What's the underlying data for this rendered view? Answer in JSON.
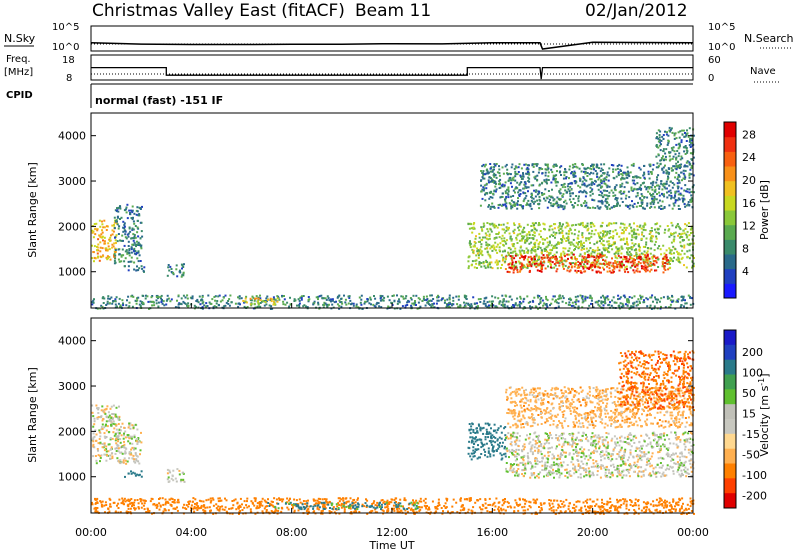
{
  "header": {
    "title": "Christmas Valley East (fitACF)",
    "beam": "Beam 11",
    "date": "02/Jan/2012"
  },
  "status": {
    "nsky_label": "N.Sky",
    "nsearch_label": "N.Search",
    "noise_ticks": [
      "10^5",
      "10^0"
    ],
    "freq_label": "Freq.",
    "freq_unit": "[MHz]",
    "freq_ticks": [
      "18",
      "8"
    ],
    "nave_label": "Nave",
    "nave_ticks": [
      "60",
      "0"
    ],
    "cpid_label": "CPID",
    "cpid_text": "normal (fast) -151 IF"
  },
  "x_ticks": [
    "00:00",
    "04:00",
    "08:00",
    "12:00",
    "16:00",
    "20:00",
    "00:00"
  ],
  "x_label": "Time UT",
  "power_colors": [
    "#1a1aff",
    "#2040c0",
    "#2a6a8a",
    "#3a8a6a",
    "#5aaa50",
    "#8ac83a",
    "#c8d820",
    "#f0c020",
    "#f89018",
    "#f86010",
    "#f03010",
    "#e00000"
  ],
  "velocity_colors": [
    "#e00000",
    "#ff4000",
    "#ff8000",
    "#ffb050",
    "#ffd890",
    "#c8c8c0",
    "#c0c0b8",
    "#60c030",
    "#40a050",
    "#2a7a8a",
    "#2040c0",
    "#1a1ac8"
  ],
  "chart_data": [
    {
      "type": "line",
      "panel": "noise",
      "x_range_hours": [
        0,
        24
      ],
      "series": [
        {
          "x": [
            0,
            2,
            4,
            6,
            8,
            10,
            12,
            14,
            16,
            17.9,
            18,
            20,
            22,
            24
          ],
          "y": [
            30,
            15,
            12,
            12,
            13,
            14,
            18,
            16,
            30,
            30,
            0.8,
            40,
            35,
            30
          ]
        }
      ]
    },
    {
      "type": "line",
      "panel": "frequency_nave",
      "y_range": [
        8,
        18
      ],
      "series": [
        {
          "x": [
            0,
            3,
            3,
            15,
            15,
            17.9,
            17.95,
            18,
            24
          ],
          "y": [
            14,
            14,
            10,
            10,
            14,
            14,
            8,
            14,
            14
          ]
        }
      ]
    },
    {
      "type": "heatmap",
      "panel": "power",
      "xlabel": "Time UT",
      "ylabel": "Slant Range [km]",
      "x_range_hours": [
        0,
        24
      ],
      "ylim": [
        200,
        4500
      ],
      "y_ticks": [
        1000,
        2000,
        3000,
        4000
      ],
      "colorbar_label": "Power [dB]",
      "colorbar_ticks": [
        4,
        8,
        12,
        16,
        20,
        24,
        28
      ],
      "colorbar_range": [
        0,
        30
      ],
      "regions": [
        {
          "t0": 0.0,
          "t1": 1.0,
          "r0": 1250,
          "r1": 2150,
          "p": 19
        },
        {
          "t0": 0.9,
          "t1": 2.0,
          "r0": 1200,
          "r1": 2500,
          "p": 8
        },
        {
          "t0": 1.3,
          "t1": 2.1,
          "r0": 1000,
          "r1": 1150,
          "p": 7
        },
        {
          "t0": 3.0,
          "t1": 3.7,
          "r0": 900,
          "r1": 1200,
          "p": 8
        },
        {
          "t0": 0.0,
          "t1": 24.0,
          "r0": 200,
          "r1": 500,
          "p": 8
        },
        {
          "t0": 6.0,
          "t1": 7.5,
          "r0": 300,
          "r1": 450,
          "p": 18
        },
        {
          "t0": 15.0,
          "t1": 24.0,
          "r0": 1100,
          "r1": 2100,
          "p": 14
        },
        {
          "t0": 16.5,
          "t1": 23.0,
          "r0": 1000,
          "r1": 1400,
          "p": 26
        },
        {
          "t0": 15.5,
          "t1": 24.0,
          "r0": 2400,
          "r1": 3400,
          "p": 8
        },
        {
          "t0": 22.5,
          "t1": 24.0,
          "r0": 3300,
          "r1": 4200,
          "p": 8
        }
      ]
    },
    {
      "type": "heatmap",
      "panel": "velocity",
      "xlabel": "Time UT",
      "ylabel": "Slant Range [km]",
      "x_range_hours": [
        0,
        24
      ],
      "ylim": [
        200,
        4500
      ],
      "y_ticks": [
        1000,
        2000,
        3000,
        4000
      ],
      "colorbar_label": "Velocity [m s^-1]",
      "colorbar_ticks": [
        200,
        100,
        50,
        15,
        -15,
        -50,
        -100,
        -200
      ],
      "regions": [
        {
          "t0": 0.0,
          "t1": 1.1,
          "r0": 1300,
          "r1": 2600,
          "v": 0
        },
        {
          "t0": 0.9,
          "t1": 2.0,
          "r0": 1300,
          "r1": 2200,
          "v": 0
        },
        {
          "t0": 1.3,
          "t1": 2.0,
          "r0": 1000,
          "r1": 1150,
          "v": 60
        },
        {
          "t0": 3.0,
          "t1": 3.7,
          "r0": 900,
          "r1": 1200,
          "v": 0
        },
        {
          "t0": 0.0,
          "t1": 24.0,
          "r0": 200,
          "r1": 550,
          "v": -60
        },
        {
          "t0": 7.0,
          "t1": 13.0,
          "r0": 300,
          "r1": 450,
          "v": 40
        },
        {
          "t0": 15.0,
          "t1": 16.5,
          "r0": 1400,
          "r1": 2200,
          "v": 60
        },
        {
          "t0": 16.5,
          "t1": 24.0,
          "r0": 1000,
          "r1": 2000,
          "v": 0
        },
        {
          "t0": 16.5,
          "t1": 24.0,
          "r0": 2100,
          "r1": 3000,
          "v": -20
        },
        {
          "t0": 21.0,
          "t1": 24.0,
          "r0": 2500,
          "r1": 3800,
          "v": -70
        }
      ]
    }
  ]
}
